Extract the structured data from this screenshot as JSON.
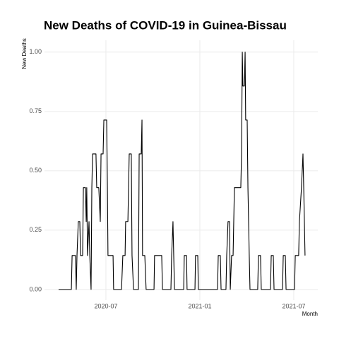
{
  "chart_data": {
    "type": "line",
    "title": "New Deaths of COVID-19 in Guinea-Bissau",
    "x_label": "Month",
    "y_label": "New Deaths",
    "color": "#000000",
    "grid": true,
    "xlim": [
      2020.173,
      2021.628
    ],
    "ylim": [
      -0.045,
      1.05
    ],
    "xticks": [
      {
        "value": 2020.5,
        "label": "2020-07"
      },
      {
        "value": 2021.0,
        "label": "2021-01"
      },
      {
        "value": 2021.5,
        "label": "2021-07"
      }
    ],
    "yticks": [
      {
        "value": 0,
        "label": "0.00"
      },
      {
        "value": 0.25,
        "label": "0.25"
      },
      {
        "value": 0.5,
        "label": "0.50"
      },
      {
        "value": 0.75,
        "label": "0.75"
      },
      {
        "value": 1,
        "label": "1.00"
      }
    ],
    "x": [
      2020.248,
      2020.316,
      2020.32,
      2020.338,
      2020.342,
      2020.346,
      2020.353,
      2020.361,
      2020.365,
      2020.376,
      2020.38,
      2020.391,
      2020.395,
      2020.398,
      2020.402,
      2020.41,
      2020.414,
      2020.421,
      2020.425,
      2020.429,
      2020.447,
      2020.451,
      2020.462,
      2020.47,
      2020.474,
      2020.485,
      2020.489,
      2020.504,
      2020.508,
      2020.511,
      2020.538,
      2020.541,
      2020.583,
      2020.59,
      2020.602,
      2020.605,
      2020.617,
      2020.624,
      2020.635,
      2020.639,
      2020.647,
      2020.673,
      2020.677,
      2020.688,
      2020.692,
      2020.695,
      2020.707,
      2020.714,
      2020.756,
      2020.759,
      2020.797,
      2020.801,
      2020.846,
      2020.85,
      2020.857,
      2020.861,
      2020.865,
      2020.914,
      2020.917,
      2020.929,
      2020.932,
      2020.974,
      2020.977,
      2020.989,
      2020.992,
      2021.094,
      2021.098,
      2021.109,
      2021.113,
      2021.139,
      2021.143,
      2021.15,
      2021.158,
      2021.162,
      2021.169,
      2021.177,
      2021.184,
      2021.218,
      2021.222,
      2021.226,
      2021.229,
      2021.237,
      2021.241,
      2021.244,
      2021.252,
      2021.256,
      2021.263,
      2021.267,
      2021.308,
      2021.312,
      2021.323,
      2021.327,
      2021.376,
      2021.38,
      2021.391,
      2021.395,
      2021.44,
      2021.444,
      2021.455,
      2021.459,
      2021.504,
      2021.508,
      2021.526,
      2021.53,
      2021.541,
      2021.549,
      2021.553,
      2021.56
    ],
    "values": [
      0,
      0,
      0.143,
      0.143,
      0,
      0.143,
      0.286,
      0.286,
      0.143,
      0.143,
      0.429,
      0.429,
      0.286,
      0.429,
      0.143,
      0.286,
      0.143,
      0,
      0.429,
      0.571,
      0.571,
      0.429,
      0.429,
      0.286,
      0.571,
      0.571,
      0.714,
      0.714,
      0.429,
      0.143,
      0.143,
      0,
      0,
      0.143,
      0.143,
      0.286,
      0.286,
      0.571,
      0.571,
      0.143,
      0,
      0,
      0.571,
      0.571,
      0.714,
      0.143,
      0.143,
      0,
      0,
      0.143,
      0.143,
      0,
      0,
      0.143,
      0.286,
      0.143,
      0,
      0,
      0.143,
      0.143,
      0,
      0,
      0.143,
      0.143,
      0,
      0,
      0.143,
      0.143,
      0,
      0,
      0.143,
      0.286,
      0.286,
      0,
      0.143,
      0.143,
      0.429,
      0.429,
      0.571,
      1,
      0.857,
      0.857,
      1,
      0.714,
      0.714,
      0.429,
      0.143,
      0,
      0,
      0.143,
      0.143,
      0,
      0,
      0.143,
      0.143,
      0,
      0,
      0.143,
      0.143,
      0,
      0,
      0.143,
      0.143,
      0.286,
      0.429,
      0.571,
      0.429,
      0.143
    ]
  }
}
